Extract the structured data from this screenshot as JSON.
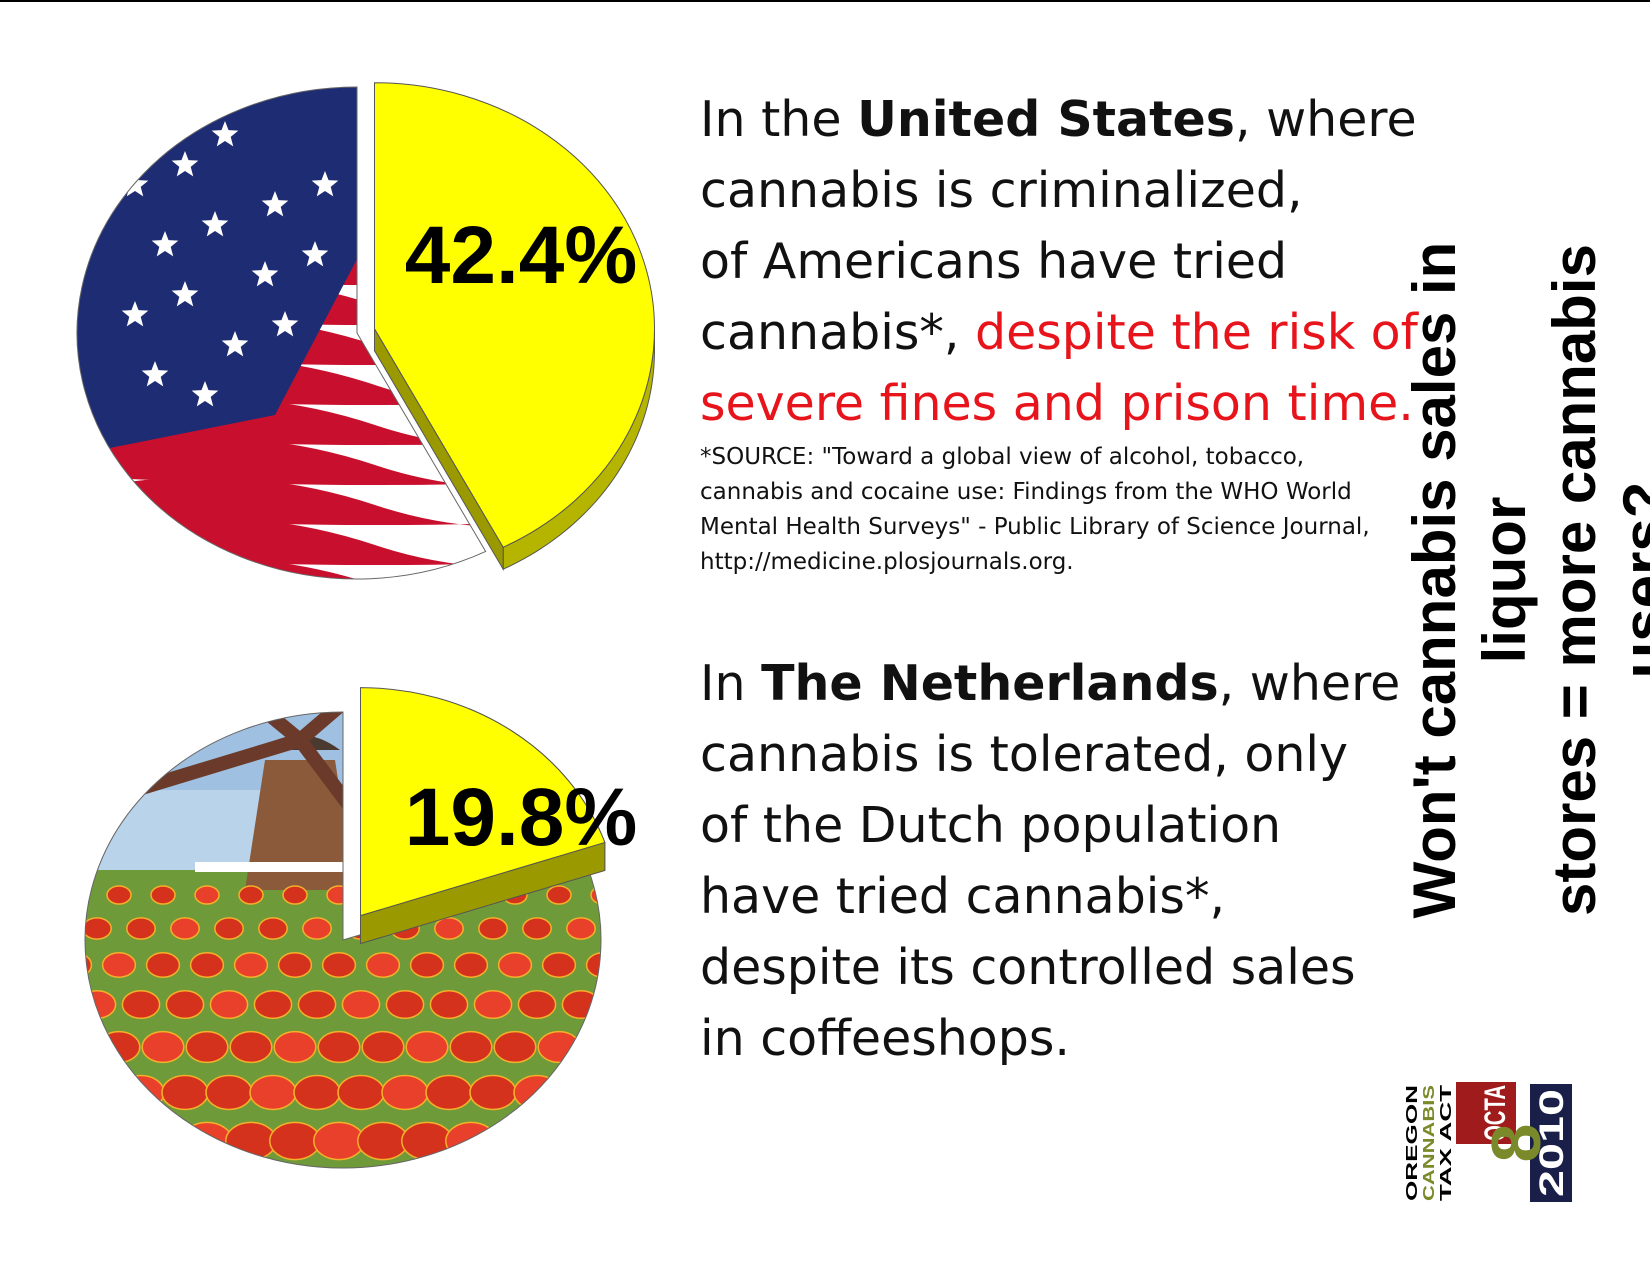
{
  "chart_data": [
    {
      "type": "pie",
      "values": [
        42.4
      ],
      "unit": "%",
      "label": "42.4%",
      "colors": {
        "highlight": "#ffff00",
        "highlight_side": "#b5b500",
        "rest": "#1e2d73"
      }
    },
    {
      "type": "pie",
      "values": [
        19.8
      ],
      "unit": "%",
      "label": "19.8%",
      "colors": {
        "highlight": "#ffff00",
        "highlight_side": "#b5b500",
        "rest": "#d8432e"
      }
    }
  ],
  "us": {
    "intro": "In the ",
    "country": "United States",
    "line1_end": ", where",
    "line2": "cannabis is criminalized,",
    "line3": "of Americans have tried",
    "line4_start": "cannabis*, ",
    "red1": "despite the risk of",
    "red2": "severe fines and prison time."
  },
  "source": {
    "line1": "*SOURCE: \"Toward a global view of alcohol, tobacco,",
    "line2": "cannabis and cocaine use: Findings from the WHO World",
    "line3": "Mental Health Surveys\" - Public Library of Science Journal,",
    "line4": "http://medicine.plosjournals.org."
  },
  "nl": {
    "intro": "In ",
    "country": "The Netherlands",
    "line1_end": ", where",
    "line2": "cannabis is tolerated, only",
    "line3": "of the Dutch population",
    "line4": "have tried cannabis*,",
    "line5": "despite its controlled sales",
    "line6": "in coffeeshops."
  },
  "side_question": {
    "line1": "Won't cannabis sales in liquor",
    "line2": "stores = more cannabis users?"
  },
  "logo": {
    "oregon": "OREGON",
    "cannabis": "CANNABIS",
    "tax_act": "TAX ACT",
    "octa": "OCTA",
    "number": "8",
    "year": "2010",
    "colors": {
      "red": "#a01c1c",
      "navy": "#1a1f4a",
      "green": "#7a8a2a"
    }
  }
}
